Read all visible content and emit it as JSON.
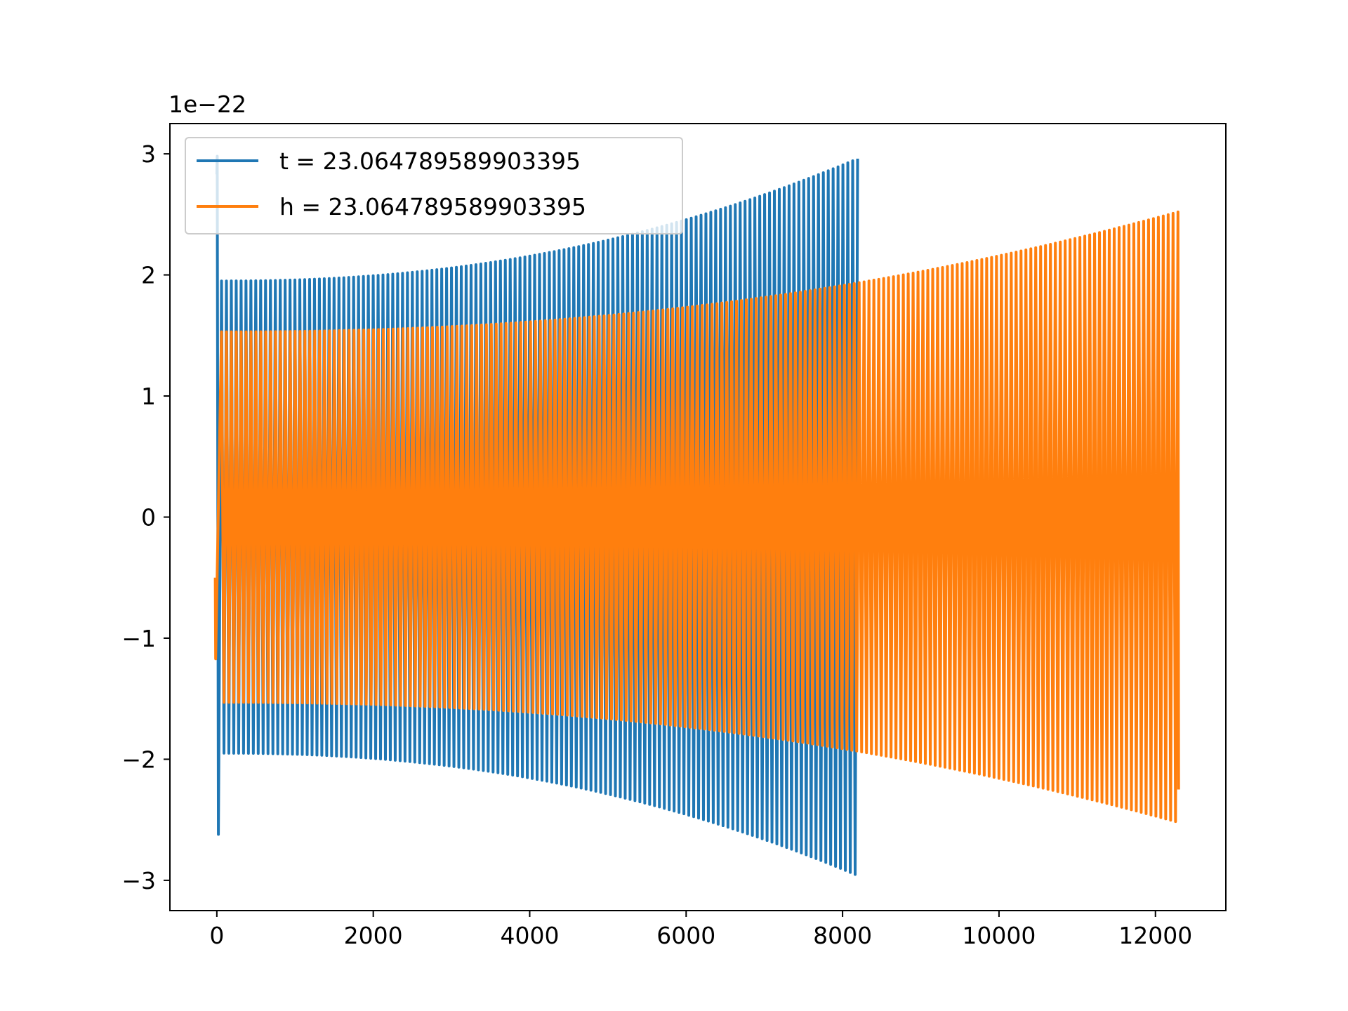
{
  "chart_data": {
    "type": "line",
    "title": "",
    "xlabel": "",
    "ylabel": "",
    "y_offset_text": "1e−22",
    "xlim": [
      -600,
      12900
    ],
    "ylim": [
      -3.25,
      3.25
    ],
    "x_ticks": [
      0,
      2000,
      4000,
      6000,
      8000,
      10000,
      12000
    ],
    "x_tick_labels": [
      "0",
      "2000",
      "4000",
      "6000",
      "8000",
      "10000",
      "12000"
    ],
    "y_ticks": [
      -3,
      -2,
      -1,
      0,
      1,
      2,
      3
    ],
    "y_tick_labels": [
      "−3",
      "−2",
      "−1",
      "0",
      "1",
      "2",
      "3"
    ],
    "grid": false,
    "legend_position": "upper-left",
    "series": [
      {
        "name": "t = 23.064789589903395",
        "color": "#1f77b4",
        "x_start": 0,
        "x_end": 8192,
        "cycles": 130,
        "amplitude_start": 1.95,
        "amplitude_end": 2.96,
        "initial_spike": [
          2.98,
          -2.62
        ]
      },
      {
        "name": "h = 23.064789589903395",
        "color": "#ff7f0e",
        "x_start": 0,
        "x_end": 12288,
        "cycles": 195,
        "amplitude_start": 1.53,
        "amplitude_end": 2.52,
        "initial_value": -0.5,
        "final_value": -2.25
      }
    ]
  }
}
